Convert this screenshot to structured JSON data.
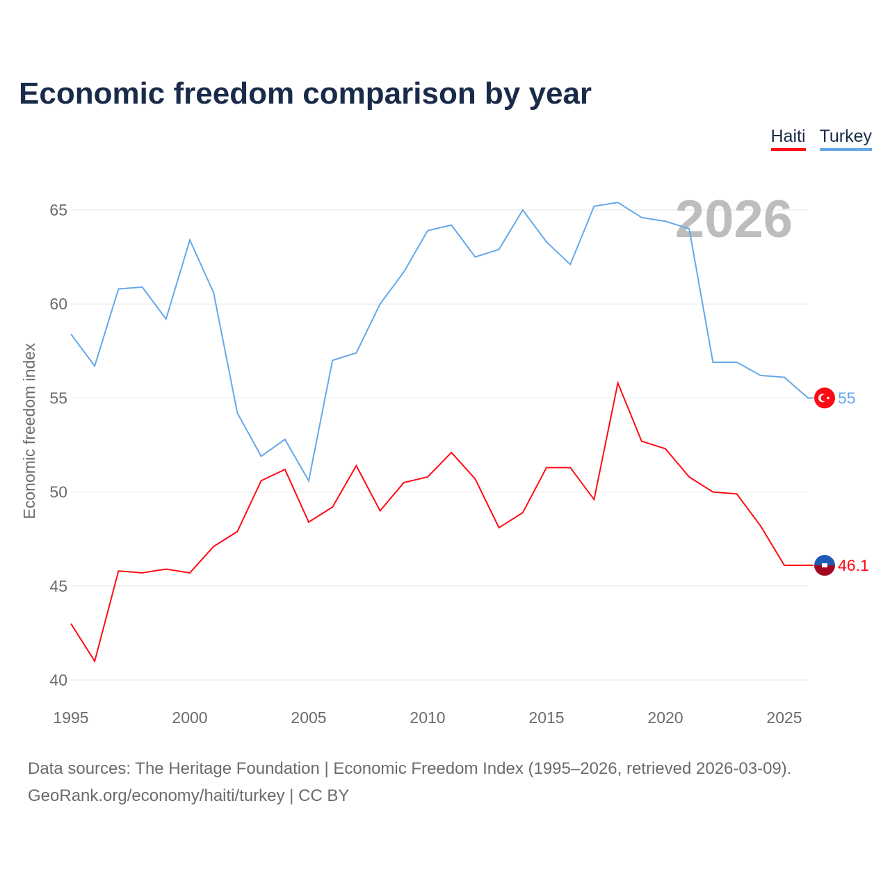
{
  "chart_data": {
    "type": "line",
    "title": "Economic freedom comparison by year",
    "xlabel": "",
    "ylabel": "Economic freedom index",
    "xlim": [
      1995,
      2026
    ],
    "ylim": [
      40,
      65
    ],
    "x_ticks": [
      1995,
      2000,
      2005,
      2010,
      2015,
      2020,
      2025
    ],
    "y_ticks": [
      40,
      45,
      50,
      55,
      60,
      65
    ],
    "grid": true,
    "legend_position": "top-right",
    "year_label": "2026",
    "x": [
      1995,
      1996,
      1997,
      1998,
      1999,
      2000,
      2001,
      2002,
      2003,
      2004,
      2005,
      2006,
      2007,
      2008,
      2009,
      2010,
      2011,
      2012,
      2013,
      2014,
      2015,
      2016,
      2017,
      2018,
      2019,
      2020,
      2021,
      2022,
      2023,
      2024,
      2025,
      2026
    ],
    "series": [
      {
        "name": "Haiti",
        "color": "#ff0a14",
        "end_label": "46.1",
        "values": [
          43.0,
          41.0,
          45.8,
          45.7,
          45.9,
          45.7,
          47.1,
          47.9,
          50.6,
          51.2,
          48.4,
          49.2,
          51.4,
          49.0,
          50.5,
          50.8,
          52.1,
          50.7,
          48.1,
          48.9,
          51.3,
          51.3,
          49.6,
          55.8,
          52.7,
          52.3,
          50.8,
          50.0,
          49.9,
          48.2,
          46.1,
          46.1
        ]
      },
      {
        "name": "Turkey",
        "color": "#64a8ea",
        "end_label": "55",
        "values": [
          58.4,
          56.7,
          60.8,
          60.9,
          59.2,
          63.4,
          60.6,
          54.2,
          51.9,
          52.8,
          50.6,
          57.0,
          57.4,
          60.0,
          61.7,
          63.9,
          64.2,
          62.5,
          62.9,
          65.0,
          63.3,
          62.1,
          65.2,
          65.4,
          64.6,
          64.4,
          64.0,
          56.9,
          56.9,
          56.2,
          56.1,
          55.0
        ]
      }
    ]
  },
  "footer": {
    "line1": "Data sources: The Heritage Foundation | Economic Freedom Index (1995–2026, retrieved 2026-03-09).",
    "line2": "GeoRank.org/economy/haiti/turkey | CC BY"
  }
}
